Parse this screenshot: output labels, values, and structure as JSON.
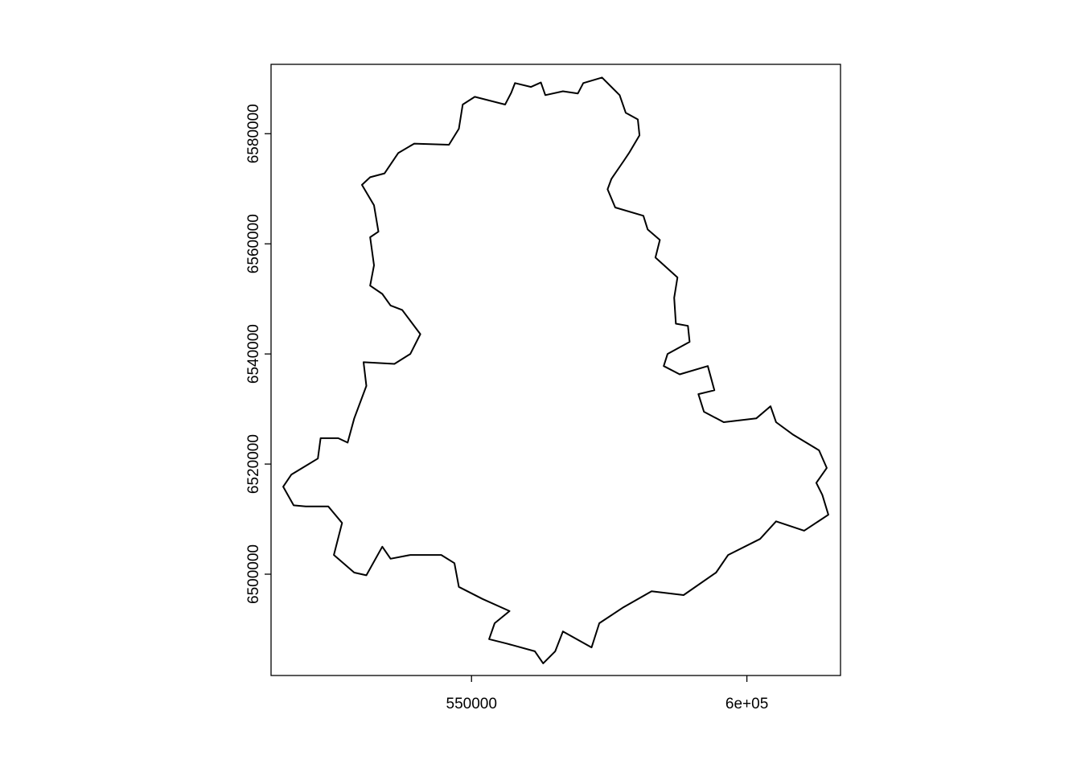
{
  "chart_data": {
    "type": "polygon-map",
    "title": "",
    "xlabel": "",
    "ylabel": "",
    "xlim": [
      513600,
      617000
    ],
    "ylim": [
      6481600,
      6592600
    ],
    "x_ticks": [
      {
        "value": 550000,
        "label": "550000"
      },
      {
        "value": 600000,
        "label": "6e+05"
      }
    ],
    "y_ticks": [
      {
        "value": 6500000,
        "label": "6500000"
      },
      {
        "value": 6520000,
        "label": "6520000"
      },
      {
        "value": 6540000,
        "label": "6540000"
      },
      {
        "value": 6560000,
        "label": "6560000"
      },
      {
        "value": 6580000,
        "label": "6580000"
      }
    ],
    "grid": false,
    "box": true,
    "line_color": "#000000",
    "fill_color": "#ffffff",
    "polygon": [
      [
        557900,
        6589200
      ],
      [
        560800,
        6588500
      ],
      [
        562600,
        6589300
      ],
      [
        563400,
        6587000
      ],
      [
        566600,
        6587700
      ],
      [
        569300,
        6587300
      ],
      [
        570300,
        6589200
      ],
      [
        573700,
        6590200
      ],
      [
        576900,
        6587000
      ],
      [
        578000,
        6583800
      ],
      [
        580200,
        6582600
      ],
      [
        580500,
        6579700
      ],
      [
        578600,
        6576500
      ],
      [
        577600,
        6575000
      ],
      [
        575400,
        6571800
      ],
      [
        574700,
        6569900
      ],
      [
        576100,
        6566600
      ],
      [
        581200,
        6565100
      ],
      [
        582000,
        6562600
      ],
      [
        584200,
        6560700
      ],
      [
        583400,
        6557500
      ],
      [
        587400,
        6553900
      ],
      [
        586800,
        6550200
      ],
      [
        587100,
        6545500
      ],
      [
        589300,
        6545100
      ],
      [
        589600,
        6542200
      ],
      [
        585600,
        6540000
      ],
      [
        584900,
        6537800
      ],
      [
        587800,
        6536300
      ],
      [
        592900,
        6537800
      ],
      [
        594100,
        6533400
      ],
      [
        591200,
        6532700
      ],
      [
        592200,
        6529500
      ],
      [
        595800,
        6527600
      ],
      [
        601700,
        6528300
      ],
      [
        604300,
        6530500
      ],
      [
        605300,
        6527600
      ],
      [
        608300,
        6525400
      ],
      [
        613100,
        6522500
      ],
      [
        614500,
        6519300
      ],
      [
        612600,
        6516600
      ],
      [
        613700,
        6514400
      ],
      [
        614800,
        6510800
      ],
      [
        610400,
        6507900
      ],
      [
        605300,
        6509600
      ],
      [
        602400,
        6506400
      ],
      [
        596600,
        6503500
      ],
      [
        594400,
        6500300
      ],
      [
        588500,
        6496200
      ],
      [
        582700,
        6496900
      ],
      [
        577600,
        6494000
      ],
      [
        573200,
        6491100
      ],
      [
        571800,
        6486700
      ],
      [
        566600,
        6489600
      ],
      [
        565200,
        6486000
      ],
      [
        563000,
        6483800
      ],
      [
        561500,
        6486000
      ],
      [
        556400,
        6487400
      ],
      [
        553200,
        6488200
      ],
      [
        554200,
        6491100
      ],
      [
        556900,
        6493300
      ],
      [
        552000,
        6495500
      ],
      [
        547700,
        6497700
      ],
      [
        546900,
        6502000
      ],
      [
        544500,
        6503500
      ],
      [
        538900,
        6503500
      ],
      [
        535300,
        6502800
      ],
      [
        533800,
        6505000
      ],
      [
        530900,
        6499800
      ],
      [
        528700,
        6500300
      ],
      [
        525000,
        6503500
      ],
      [
        526500,
        6509300
      ],
      [
        524000,
        6512300
      ],
      [
        519900,
        6512300
      ],
      [
        517700,
        6512500
      ],
      [
        515800,
        6515900
      ],
      [
        517300,
        6518100
      ],
      [
        522100,
        6521000
      ],
      [
        522600,
        6524700
      ],
      [
        525800,
        6524700
      ],
      [
        527500,
        6523900
      ],
      [
        528700,
        6528300
      ],
      [
        530900,
        6534200
      ],
      [
        530400,
        6538500
      ],
      [
        536000,
        6538200
      ],
      [
        538900,
        6540000
      ],
      [
        540700,
        6543600
      ],
      [
        537400,
        6548000
      ],
      [
        535300,
        6548800
      ],
      [
        533800,
        6550900
      ],
      [
        531600,
        6552400
      ],
      [
        532300,
        6556100
      ],
      [
        531600,
        6561200
      ],
      [
        533100,
        6562200
      ],
      [
        532300,
        6567000
      ],
      [
        530100,
        6570700
      ],
      [
        531600,
        6572100
      ],
      [
        534200,
        6572800
      ],
      [
        536700,
        6576500
      ],
      [
        539600,
        6578200
      ],
      [
        545900,
        6578000
      ],
      [
        547700,
        6580900
      ],
      [
        548400,
        6585300
      ],
      [
        550600,
        6586700
      ],
      [
        556100,
        6585300
      ],
      [
        557200,
        6587400
      ]
    ]
  }
}
